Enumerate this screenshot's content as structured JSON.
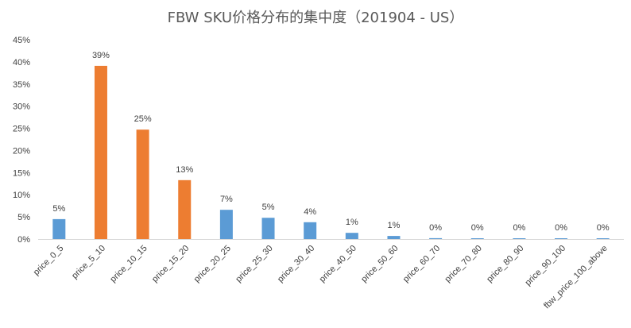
{
  "chart_data": {
    "type": "bar",
    "title": "FBW SKU价格分布的集中度（201904 - US）",
    "xlabel": "",
    "ylabel": "",
    "ylim": [
      0,
      45
    ],
    "y_ticks": [
      "0%",
      "5%",
      "10%",
      "15%",
      "20%",
      "25%",
      "30%",
      "35%",
      "40%",
      "45%"
    ],
    "categories": [
      "price_0_5",
      "price_5_10",
      "price_10_15",
      "price_15_20",
      "price_20_25",
      "price_25_30",
      "price_30_40",
      "price_40_50",
      "price_50_60",
      "price_60_70",
      "price_70_80",
      "price_80_90",
      "price_90_100",
      "fbw_price_100_above"
    ],
    "values": [
      4.5,
      39.1,
      24.7,
      13.3,
      6.6,
      4.8,
      3.8,
      1.4,
      0.7,
      0.2,
      0.1,
      0.1,
      0.1,
      0.1
    ],
    "data_labels": [
      "5%",
      "39%",
      "25%",
      "13%",
      "7%",
      "5%",
      "4%",
      "1%",
      "1%",
      "0%",
      "0%",
      "0%",
      "0%",
      "0%"
    ],
    "bar_colors": [
      "#5B9BD5",
      "#ED7D31",
      "#ED7D31",
      "#ED7D31",
      "#5B9BD5",
      "#5B9BD5",
      "#5B9BD5",
      "#5B9BD5",
      "#5B9BD5",
      "#5B9BD5",
      "#5B9BD5",
      "#5B9BD5",
      "#5B9BD5",
      "#5B9BD5"
    ],
    "grid": false,
    "legend": "none"
  }
}
